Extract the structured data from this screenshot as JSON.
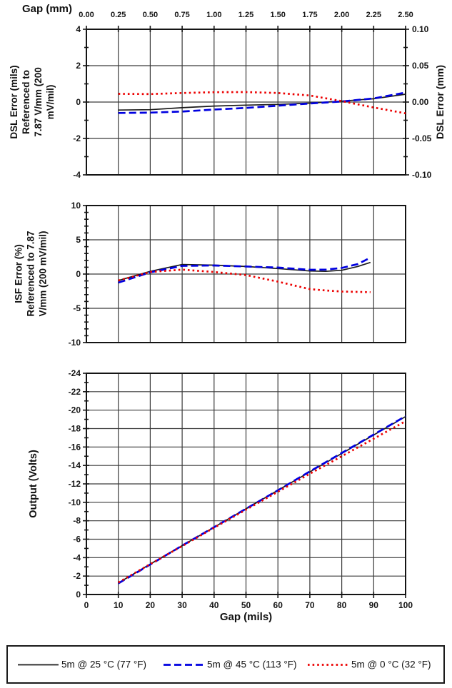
{
  "legend": {
    "entries": [
      {
        "label": "5m @ 25 °C (77 °F)",
        "color": "#1a1a1a",
        "style": "solid"
      },
      {
        "label": "5m @ 45 °C (113 °F)",
        "color": "#0000e0",
        "style": "dashed"
      },
      {
        "label": "5m @ 0 °C (32 °F)",
        "color": "#ec0000",
        "style": "dotted"
      }
    ]
  },
  "chart_data": [
    {
      "type": "line",
      "ylabel": "DSL Error (mils)\nReferenced to\n7.87 V/mm (200\nmV/mil)",
      "xlim": [
        0,
        100
      ],
      "x_grid": [
        0,
        10,
        20,
        30,
        40,
        50,
        60,
        70,
        80,
        90,
        100
      ],
      "top_axis": {
        "title": "Gap (mm)",
        "labels": [
          "0.00",
          "0.25",
          "0.50",
          "0.75",
          "1.00",
          "1.25",
          "1.50",
          "1.75",
          "2.00",
          "2.25",
          "2.50"
        ]
      },
      "y_axis": {
        "ytop": 4,
        "ybottom": -4,
        "ticks": [
          4,
          2,
          0,
          -2,
          -4
        ],
        "labels": [
          "4",
          "2",
          "0",
          "-2",
          "-4"
        ],
        "minor_step": 1
      },
      "right_axis": {
        "title": "DSL Error (mm)",
        "labels": [
          "0.10",
          "0.05",
          "0.00",
          "-0.05",
          "-0.10"
        ]
      },
      "x": [
        10,
        20,
        30,
        40,
        50,
        60,
        70,
        80,
        90,
        100
      ],
      "series": [
        {
          "name": "5m @ 25 °C (77 °F)",
          "values": [
            -0.44,
            -0.42,
            -0.31,
            -0.22,
            -0.17,
            -0.13,
            -0.06,
            0.05,
            0.18,
            0.43
          ]
        },
        {
          "name": "5m @ 45 °C (113 °F)",
          "values": [
            -0.6,
            -0.58,
            -0.52,
            -0.41,
            -0.32,
            -0.2,
            -0.08,
            0.03,
            0.2,
            0.52
          ]
        },
        {
          "name": "5m @ 0 °C (32 °F)",
          "values": [
            0.45,
            0.44,
            0.5,
            0.54,
            0.55,
            0.5,
            0.36,
            0.05,
            -0.3,
            -0.62
          ]
        }
      ]
    },
    {
      "type": "line",
      "ylabel": "ISF Error (%)\nReferenced to 7.87\nV/mm (200 mV/mil)",
      "xlim": [
        0,
        100
      ],
      "x_grid": [
        0,
        10,
        20,
        30,
        40,
        50,
        60,
        70,
        80,
        90,
        100
      ],
      "y_axis": {
        "ytop": 10,
        "ybottom": -10,
        "ticks": [
          10,
          5,
          0,
          -5,
          -10
        ],
        "labels": [
          "10",
          "5",
          "0",
          "-5",
          "-10"
        ],
        "minor_step": 1
      },
      "x": [
        10,
        20,
        30,
        40,
        50,
        60,
        70,
        75,
        80,
        85,
        89
      ],
      "series": [
        {
          "name": "5m @ 25 °C (77 °F)",
          "values": [
            -0.95,
            0.4,
            1.4,
            1.3,
            1.1,
            0.8,
            0.45,
            0.4,
            0.55,
            1.1,
            1.7
          ]
        },
        {
          "name": "5m @ 45 °C (113 °F)",
          "values": [
            -1.25,
            0.25,
            1.2,
            1.25,
            1.1,
            0.95,
            0.62,
            0.65,
            0.9,
            1.45,
            2.4
          ]
        },
        {
          "name": "5m @ 0 °C (32 °F)",
          "values": [
            -0.95,
            0.3,
            0.65,
            0.3,
            -0.15,
            -1.1,
            -2.2,
            -2.4,
            -2.55,
            -2.6,
            -2.65
          ]
        }
      ]
    },
    {
      "type": "line",
      "ylabel": "Output (Volts)",
      "xlim": [
        0,
        100
      ],
      "x_grid": [
        0,
        10,
        20,
        30,
        40,
        50,
        60,
        70,
        80,
        90,
        100
      ],
      "bottom_axis": {
        "title": "Gap (mils)",
        "labels": [
          "0",
          "10",
          "20",
          "30",
          "40",
          "50",
          "60",
          "70",
          "80",
          "90",
          "100"
        ]
      },
      "y_axis": {
        "ytop": -24,
        "ybottom": 0,
        "ticks": [
          -24,
          -22,
          -20,
          -18,
          -16,
          -14,
          -12,
          -10,
          -8,
          -6,
          -4,
          -2,
          0
        ],
        "labels": [
          "-24",
          "-22",
          "-20",
          "-18",
          "-16",
          "-14",
          "-12",
          "-10",
          "-8",
          "-6",
          "-4",
          "-2",
          "0"
        ],
        "minor_step": 1
      },
      "x": [
        10,
        20,
        30,
        40,
        50,
        60,
        70,
        80,
        90,
        100
      ],
      "series": [
        {
          "name": "5m @ 25 °C (77 °F)",
          "values": [
            -1.25,
            -3.3,
            -5.3,
            -7.3,
            -9.3,
            -11.3,
            -13.3,
            -15.3,
            -17.3,
            -19.3
          ]
        },
        {
          "name": "5m @ 45 °C (113 °F)",
          "values": [
            -1.2,
            -3.25,
            -5.3,
            -7.3,
            -9.3,
            -11.3,
            -13.35,
            -15.35,
            -17.35,
            -19.35
          ]
        },
        {
          "name": "5m @ 0 °C (32 °F)",
          "values": [
            -1.3,
            -3.3,
            -5.25,
            -7.25,
            -9.2,
            -11.15,
            -13.1,
            -15.0,
            -16.9,
            -18.8
          ]
        }
      ]
    }
  ]
}
